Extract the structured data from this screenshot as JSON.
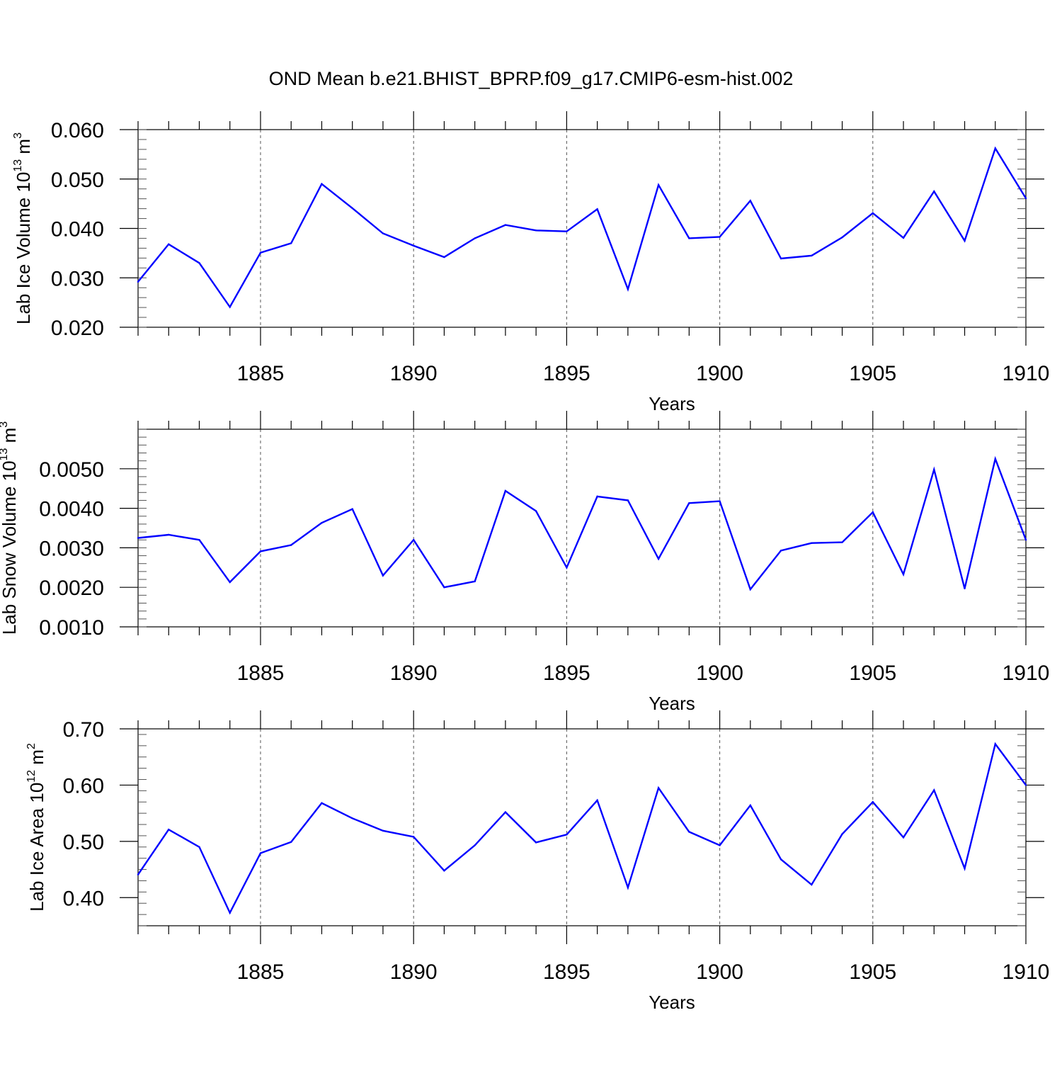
{
  "title": "OND Mean b.e21.BHIST_BPRP.f09_g17.CMIP6-esm-hist.002",
  "colors": {
    "line": "#0000ff",
    "axis": "#000000",
    "grid": "#555555"
  },
  "chart_data": [
    {
      "type": "line",
      "ylabel": {
        "prefix": "Lab Ice Volume 10",
        "exp": "13",
        "unit": " m",
        "unit_exp": "3"
      },
      "xlabel": "Years",
      "xlim": [
        1881,
        1910
      ],
      "ylim": [
        0.02,
        0.06
      ],
      "yticks": [
        "0.020",
        "0.030",
        "0.040",
        "0.050",
        "0.060"
      ],
      "ytick_values": [
        0.02,
        0.03,
        0.04,
        0.05,
        0.06
      ],
      "xticks": [
        "1885",
        "1890",
        "1895",
        "1900",
        "1905",
        "1910"
      ],
      "xtick_values": [
        1885,
        1890,
        1895,
        1900,
        1905,
        1910
      ],
      "grid": "dashed vertical at major x ticks",
      "x": [
        1881,
        1882,
        1883,
        1884,
        1885,
        1886,
        1887,
        1888,
        1889,
        1890,
        1891,
        1892,
        1893,
        1894,
        1895,
        1896,
        1897,
        1898,
        1899,
        1900,
        1901,
        1902,
        1903,
        1904,
        1905,
        1906,
        1907,
        1908,
        1909,
        1910
      ],
      "values": [
        0.0292,
        0.0368,
        0.033,
        0.0241,
        0.0351,
        0.037,
        0.049,
        0.0441,
        0.039,
        0.0365,
        0.0342,
        0.038,
        0.0407,
        0.0396,
        0.0394,
        0.0439,
        0.0277,
        0.0488,
        0.038,
        0.0383,
        0.0456,
        0.0339,
        0.0345,
        0.0382,
        0.0431,
        0.0381,
        0.0475,
        0.0375,
        0.0562,
        0.0461
      ]
    },
    {
      "type": "line",
      "ylabel": {
        "prefix": "Lab Snow Volume 10",
        "exp": "13",
        "unit": " m",
        "unit_exp": "3"
      },
      "xlabel": "Years",
      "xlim": [
        1881,
        1910
      ],
      "ylim": [
        0.001,
        0.006
      ],
      "yticks": [
        "0.0010",
        "0.0020",
        "0.0030",
        "0.0040",
        "0.0050"
      ],
      "ytick_values": [
        0.001,
        0.002,
        0.003,
        0.004,
        0.005
      ],
      "xticks": [
        "1885",
        "1890",
        "1895",
        "1900",
        "1905",
        "1910"
      ],
      "xtick_values": [
        1885,
        1890,
        1895,
        1900,
        1905,
        1910
      ],
      "grid": "dashed vertical at major x ticks",
      "x": [
        1881,
        1882,
        1883,
        1884,
        1885,
        1886,
        1887,
        1888,
        1889,
        1890,
        1891,
        1892,
        1893,
        1894,
        1895,
        1896,
        1897,
        1898,
        1899,
        1900,
        1901,
        1902,
        1903,
        1904,
        1905,
        1906,
        1907,
        1908,
        1909,
        1910
      ],
      "values": [
        0.00325,
        0.00333,
        0.0032,
        0.00213,
        0.00291,
        0.00307,
        0.00363,
        0.00398,
        0.0023,
        0.0032,
        0.002,
        0.00215,
        0.00444,
        0.00393,
        0.0025,
        0.0043,
        0.0042,
        0.00272,
        0.00413,
        0.00418,
        0.00195,
        0.00293,
        0.00312,
        0.00314,
        0.0039,
        0.00233,
        0.00498,
        0.00197,
        0.00525,
        0.0032
      ]
    },
    {
      "type": "line",
      "ylabel": {
        "prefix": "Lab Ice Area 10",
        "exp": "12",
        "unit": " m",
        "unit_exp": "2"
      },
      "xlabel": "Years",
      "xlim": [
        1881,
        1910
      ],
      "ylim": [
        0.35,
        0.7
      ],
      "yticks": [
        "0.40",
        "0.50",
        "0.60",
        "0.70"
      ],
      "ytick_values": [
        0.4,
        0.5,
        0.6,
        0.7
      ],
      "xticks": [
        "1885",
        "1890",
        "1895",
        "1900",
        "1905",
        "1910"
      ],
      "xtick_values": [
        1885,
        1890,
        1895,
        1900,
        1905,
        1910
      ],
      "grid": "dashed vertical at major x ticks",
      "x": [
        1881,
        1882,
        1883,
        1884,
        1885,
        1886,
        1887,
        1888,
        1889,
        1890,
        1891,
        1892,
        1893,
        1894,
        1895,
        1896,
        1897,
        1898,
        1899,
        1900,
        1901,
        1902,
        1903,
        1904,
        1905,
        1906,
        1907,
        1908,
        1909,
        1910
      ],
      "values": [
        0.441,
        0.521,
        0.49,
        0.373,
        0.479,
        0.499,
        0.568,
        0.541,
        0.519,
        0.508,
        0.448,
        0.493,
        0.552,
        0.498,
        0.512,
        0.573,
        0.418,
        0.595,
        0.517,
        0.493,
        0.564,
        0.468,
        0.423,
        0.513,
        0.57,
        0.507,
        0.591,
        0.452,
        0.673,
        0.6
      ]
    }
  ]
}
